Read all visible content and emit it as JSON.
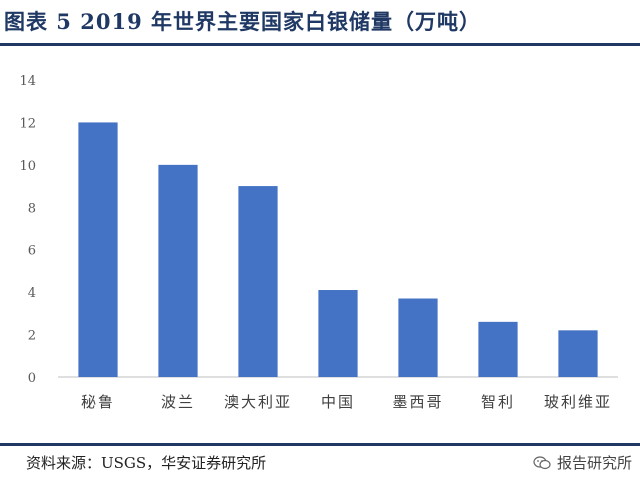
{
  "header": {
    "title": "图表 5 2019 年世界主要国家白银储量（万吨）"
  },
  "footer": {
    "source": "资料来源：USGS，华安证券研究所",
    "watermark": "报告研究所",
    "watermark_icon": "wechat-icon"
  },
  "chart_data": {
    "type": "bar",
    "categories": [
      "秘鲁",
      "波兰",
      "澳大利亚",
      "中国",
      "墨西哥",
      "智利",
      "玻利维亚"
    ],
    "values": [
      12,
      10,
      9,
      4.1,
      3.7,
      2.6,
      2.2
    ],
    "ylim": [
      0,
      14
    ],
    "yticks": [
      0,
      2,
      4,
      6,
      8,
      10,
      12,
      14
    ],
    "grid": false,
    "bar_color": "#4472c4"
  }
}
